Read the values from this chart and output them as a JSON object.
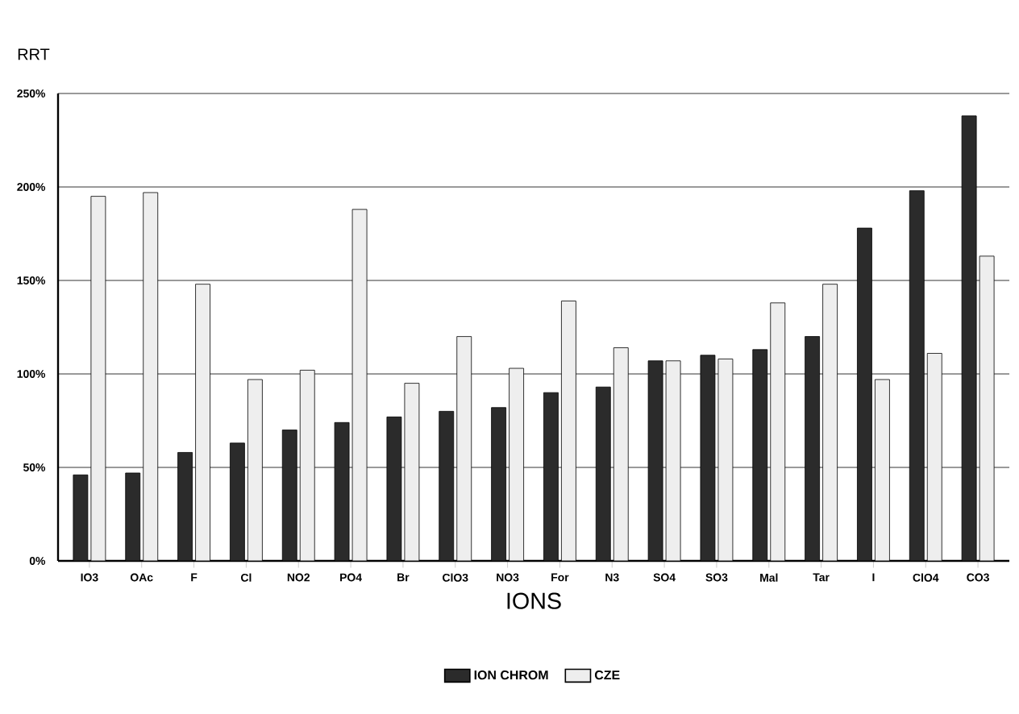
{
  "chart_data": {
    "type": "bar",
    "ylabel": "RRT",
    "xlabel": "IONS",
    "categories": [
      "IO3",
      "OAc",
      "F",
      "Cl",
      "NO2",
      "PO4",
      "Br",
      "ClO3",
      "NO3",
      "For",
      "N3",
      "SO4",
      "SO3",
      "Mal",
      "Tar",
      "I",
      "ClO4",
      "CO3"
    ],
    "series": [
      {
        "name": "ION CHROM",
        "color": "#2b2b2b",
        "values": [
          46,
          47,
          58,
          63,
          70,
          74,
          77,
          80,
          82,
          90,
          93,
          107,
          110,
          113,
          120,
          178,
          198,
          238
        ]
      },
      {
        "name": "CZE",
        "color": "#eeeeee",
        "values": [
          195,
          197,
          148,
          97,
          102,
          188,
          95,
          120,
          103,
          139,
          114,
          107,
          108,
          138,
          148,
          97,
          111,
          163
        ]
      }
    ],
    "ylim": [
      0,
      250
    ],
    "yticks": [
      {
        "value": 0,
        "label": "0%"
      },
      {
        "value": 50,
        "label": "50%"
      },
      {
        "value": 100,
        "label": "100%"
      },
      {
        "value": 150,
        "label": "150%"
      },
      {
        "value": 200,
        "label": "200%"
      },
      {
        "value": 250,
        "label": "250%"
      }
    ],
    "grid": "y",
    "legend": "bottom"
  }
}
